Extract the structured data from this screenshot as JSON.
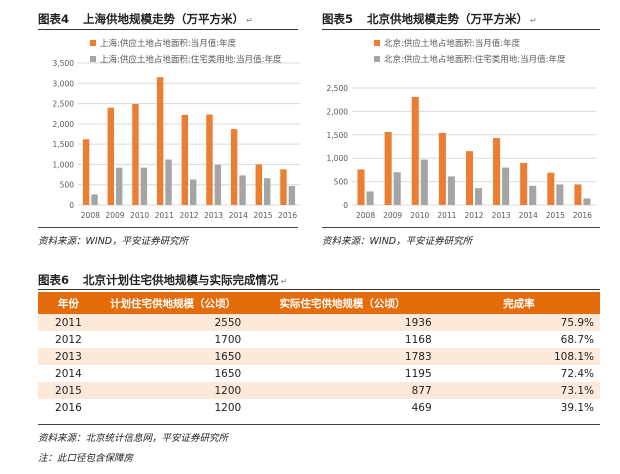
{
  "figure4": {
    "num": "图表4",
    "title": "上海供地规模走势（万平方米）",
    "source": "资料来源：WIND，平安证券研究所"
  },
  "figure5": {
    "num": "图表5",
    "title": "北京供地规模走势（万平方米）",
    "source": "资料来源：WIND，平安证券研究所"
  },
  "figure6": {
    "num": "图表6",
    "title": "北京计划住宅供地规模与实际完成情况",
    "headers": [
      "年份",
      "计划住宅供地规模（公顷）",
      "实际住宅供地规模（公顷）",
      "完成率"
    ],
    "rows": [
      [
        "2011",
        "2550",
        "1936",
        "75.9%"
      ],
      [
        "2012",
        "1700",
        "1168",
        "68.7%"
      ],
      [
        "2013",
        "1650",
        "1783",
        "108.1%"
      ],
      [
        "2014",
        "1650",
        "1195",
        "72.4%"
      ],
      [
        "2015",
        "1200",
        "877",
        "73.1%"
      ],
      [
        "2016",
        "1200",
        "469",
        "39.1%"
      ]
    ],
    "source": "资料来源：北京统计信息网，平安证券研究所",
    "note": "注：此口径包含保障房"
  },
  "colors": {
    "orange": "#ed7d31",
    "gray": "#a5a5a5",
    "header": "#e46c0a",
    "band": "#fde9d9"
  },
  "chart_data": [
    {
      "type": "bar",
      "categories": [
        "2008",
        "2009",
        "2010",
        "2011",
        "2012",
        "2013",
        "2014",
        "2015",
        "2016"
      ],
      "series": [
        {
          "name": "上海:供应土地占地面积:当月值:年度",
          "values": [
            1620,
            2400,
            2490,
            3150,
            2220,
            2230,
            1870,
            1000,
            880
          ]
        },
        {
          "name": "上海:供应土地占地面积:住宅类用地:当月值:年度",
          "values": [
            260,
            920,
            920,
            1120,
            630,
            990,
            730,
            660,
            470
          ]
        }
      ],
      "yticks": [
        "0",
        "500",
        "1,000",
        "1,500",
        "2,000",
        "2,500",
        "3,000",
        "3,500"
      ],
      "ylim": [
        0,
        3500
      ],
      "grid": true,
      "legend": "top-left"
    },
    {
      "type": "bar",
      "categories": [
        "2008",
        "2009",
        "2010",
        "2011",
        "2012",
        "2013",
        "2014",
        "2015",
        "2016"
      ],
      "series": [
        {
          "name": "北京:供应土地占地面积:当月值:年度",
          "values": [
            760,
            1560,
            2310,
            1540,
            1150,
            1430,
            900,
            690,
            440
          ]
        },
        {
          "name": "北京:供应土地占地面积:住宅类用地:当月值:年度",
          "values": [
            290,
            700,
            970,
            610,
            360,
            800,
            410,
            440,
            140
          ]
        }
      ],
      "yticks": [
        "0",
        "500",
        "1,000",
        "1,500",
        "2,000",
        "2,500"
      ],
      "ylim": [
        0,
        2500
      ],
      "grid": true,
      "legend": "top-left"
    }
  ]
}
